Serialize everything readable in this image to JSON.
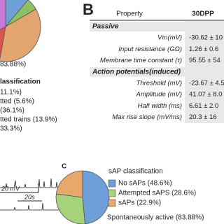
{
  "chart_data": [
    {
      "type": "pie",
      "subtitle": "83.88%)",
      "title": "lassification",
      "categories": [
        "11.1%)",
        "tted (5.6%)",
        "(36.1%)",
        "tted trains (13.9%)",
        "33.3%)"
      ],
      "values": [
        11.1,
        5.6,
        36.1,
        13.9,
        33.3
      ],
      "colors": [
        "#6f9fd8",
        "#8cc063",
        "#e3a56e",
        "#d9534f",
        "#c47ad6"
      ],
      "text_colors": [
        "#3b6fb5",
        "#5e9a35",
        "#b5651d",
        "#b3322e",
        "#9b3fb3"
      ]
    },
    {
      "type": "pie",
      "panel_label": "C",
      "title": "sAP classification",
      "categories": [
        "No sAPs (48.6%)",
        "Attempted sAPS (28.6%)",
        "sAPs (22.9%)"
      ],
      "values": [
        48.6,
        28.6,
        22.9
      ],
      "colors": [
        "#6f9fd8",
        "#a6d27a",
        "#e7a96b"
      ],
      "caption": "Spontaneously active (83.88%)"
    }
  ],
  "panel_b": {
    "panel_label": "B",
    "header": [
      "Property",
      "30DPP"
    ],
    "rows": [
      [
        "Passive"
      ],
      [
        "Vm(mV)",
        "-30.62 ± 10"
      ],
      [
        "Input resistance (GΩ)",
        "1.26 ± 0.6"
      ],
      [
        "Membrane time constant (τ)",
        "95.55 ± 54"
      ],
      [
        "Action potentials(induced)"
      ],
      [
        "Threshold (mV)",
        "-23.67 ± 4.5"
      ],
      [
        "Amplitude (mV)",
        "41.07 ± 8.0"
      ],
      [
        "Half width (ms)",
        "6.61 ± 2.0"
      ],
      [
        "Max rise slope (mV/ms)",
        "20.3 ± 16"
      ]
    ]
  },
  "traces": {
    "scale_y": "20 mV",
    "scale_x": "20s"
  }
}
